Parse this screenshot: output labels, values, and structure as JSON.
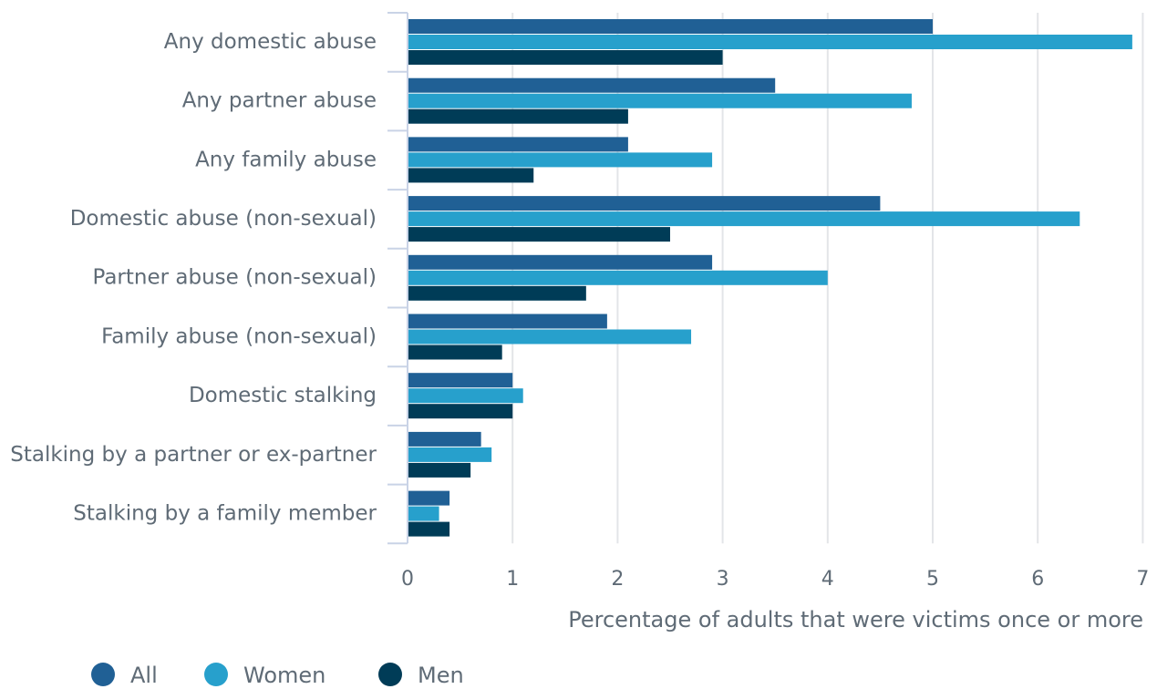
{
  "chart_data": {
    "type": "bar",
    "orientation": "horizontal",
    "categories": [
      "Any domestic abuse",
      "Any partner abuse",
      "Any family abuse",
      "Domestic abuse (non-sexual)",
      "Partner abuse (non-sexual)",
      "Family abuse (non-sexual)",
      "Domestic stalking",
      "Stalking by a partner or ex-partner",
      "Stalking by a family member"
    ],
    "series": [
      {
        "name": "All",
        "color": "#206095",
        "values": [
          5.0,
          3.5,
          2.1,
          4.5,
          2.9,
          1.9,
          1.0,
          0.7,
          0.4
        ]
      },
      {
        "name": "Women",
        "color": "#27a0cc",
        "values": [
          6.9,
          4.8,
          2.9,
          6.4,
          4.0,
          2.7,
          1.1,
          0.8,
          0.3
        ]
      },
      {
        "name": "Men",
        "color": "#003c57",
        "values": [
          3.0,
          2.1,
          1.2,
          2.5,
          1.7,
          0.9,
          1.0,
          0.6,
          0.4
        ]
      }
    ],
    "x_ticks": [
      "0",
      "1",
      "2",
      "3",
      "4",
      "5",
      "6",
      "7"
    ],
    "xlim": [
      0,
      7
    ],
    "xlabel": "Percentage of adults that were victims once or more",
    "ylabel": "",
    "title": "",
    "grid": true,
    "legend_position": "bottom-left"
  }
}
